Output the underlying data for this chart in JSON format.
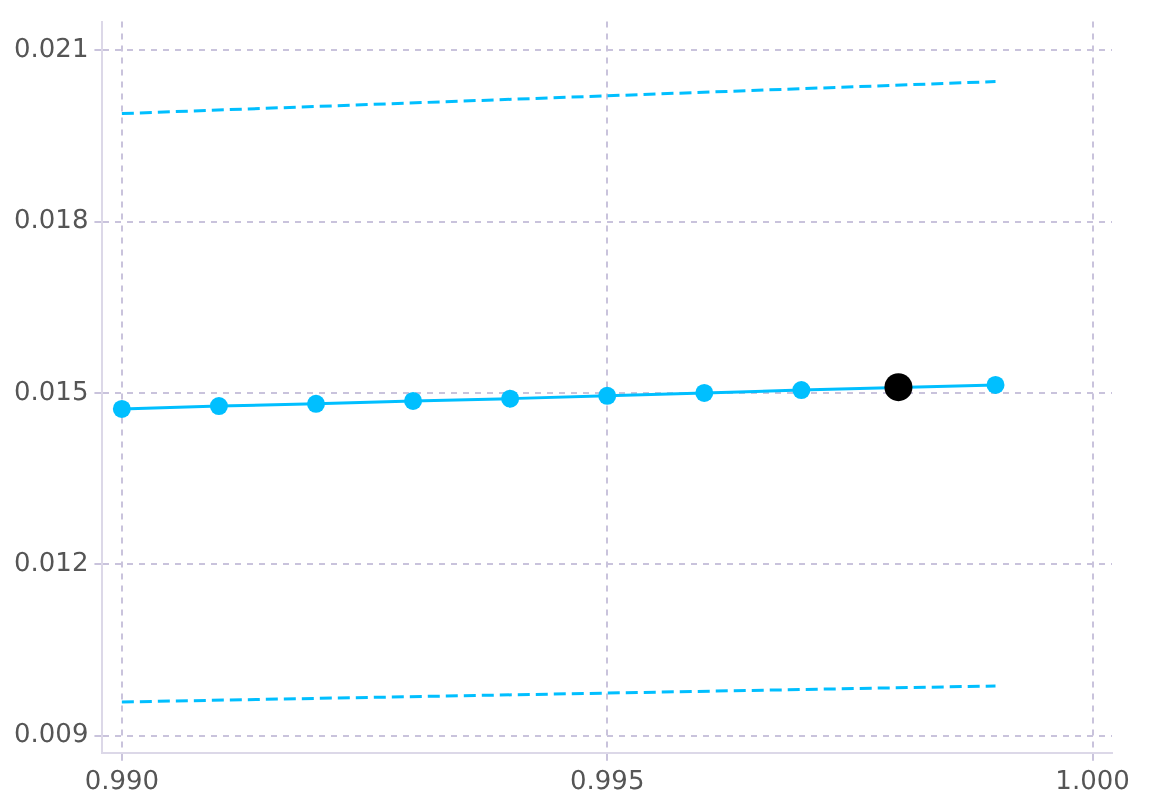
{
  "chart_data": {
    "type": "line",
    "xlim": [
      0.9898,
      1.0002
    ],
    "ylim": [
      0.0087,
      0.0215
    ],
    "xticks": [
      {
        "value": 0.99,
        "label": "0.990"
      },
      {
        "value": 0.995,
        "label": "0.995"
      },
      {
        "value": 1.0,
        "label": "1.000"
      }
    ],
    "yticks": [
      {
        "value": 0.009,
        "label": "0.009"
      },
      {
        "value": 0.012,
        "label": "0.012"
      },
      {
        "value": 0.015,
        "label": "0.015"
      },
      {
        "value": 0.018,
        "label": "0.018"
      },
      {
        "value": 0.021,
        "label": "0.021"
      }
    ],
    "grid": true,
    "legend": false,
    "series": [
      {
        "color": "#00bfff",
        "marker": "none",
        "line_style": "dashed",
        "x": [
          0.99,
          0.999
        ],
        "values": [
          0.01989,
          0.02045
        ]
      },
      {
        "color": "#00bfff",
        "marker": "circle",
        "line_style": "solid",
        "x": [
          0.99,
          0.991,
          0.992,
          0.993,
          0.994,
          0.995,
          0.996,
          0.997,
          0.998,
          0.999
        ],
        "values": [
          0.01472,
          0.01477,
          0.01481,
          0.01486,
          0.0149,
          0.01495,
          0.015,
          0.01505,
          null,
          0.01514
        ]
      },
      {
        "color": "#00bfff",
        "marker": "none",
        "line_style": "dashed",
        "x": [
          0.99,
          0.999
        ],
        "values": [
          0.00959,
          0.00987
        ]
      },
      {
        "type": "scatter",
        "color": "#000000",
        "marker": "circle",
        "x": [
          0.998
        ],
        "values": [
          0.0151
        ]
      }
    ]
  }
}
